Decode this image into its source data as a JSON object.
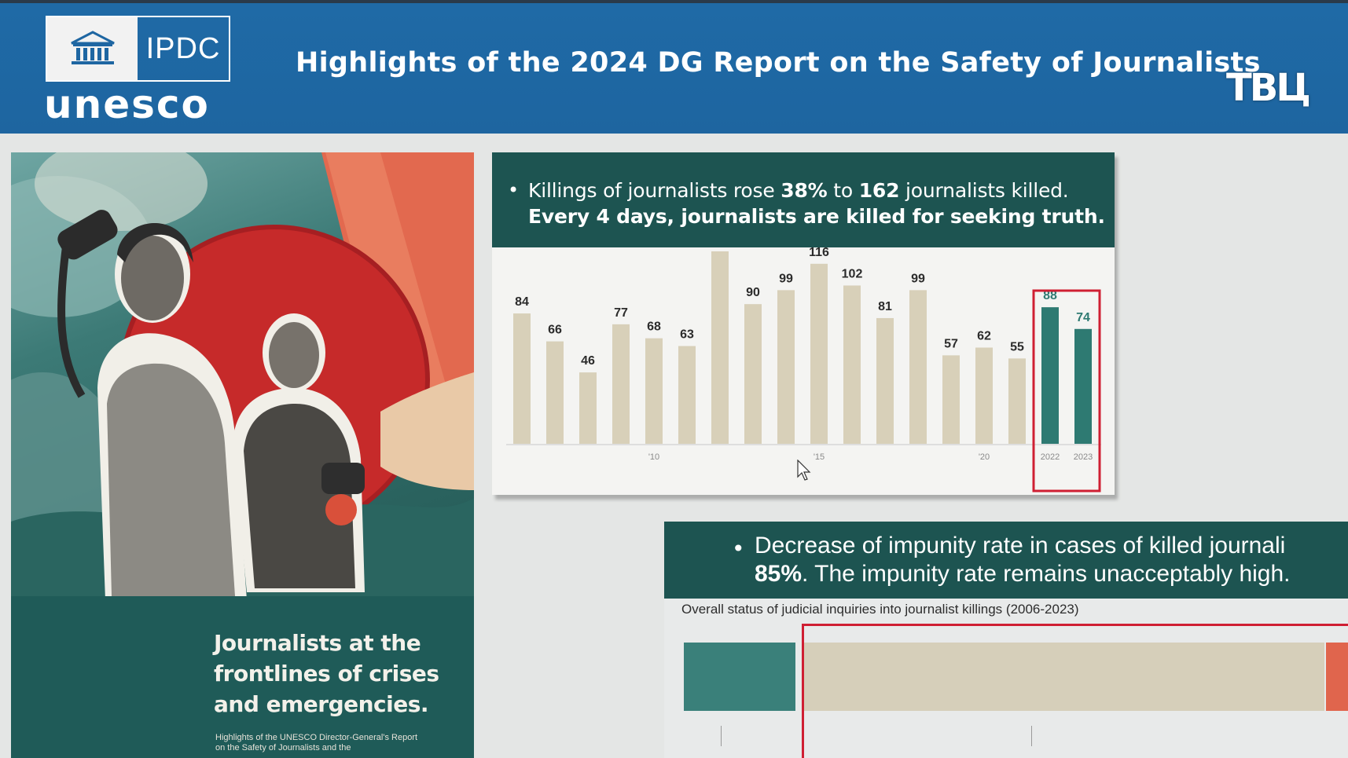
{
  "header": {
    "ipdc_label": "IPDC",
    "unesco_label": "unesco",
    "title": "Highlights of the 2024 DG Report on the Safety of Journalists",
    "channel_logo": "ТВЦ"
  },
  "poster": {
    "headline": "Journalists at the frontlines of crises and emergencies.",
    "subtext": "Highlights of the UNESCO Director-General's Report on the Safety of Journalists and the"
  },
  "killings_panel": {
    "line1_pre": "Killings of journalists rose ",
    "line1_pct": "38%",
    "line1_mid": " to ",
    "line1_num": "162",
    "line1_post": " journalists killed.",
    "line2": "Every 4 days, journalists are killed for seeking truth."
  },
  "chart_data": {
    "type": "bar",
    "title": "",
    "xlabel": "",
    "ylabel": "",
    "categories": [
      "2006",
      "2007",
      "2008",
      "2009",
      "2010",
      "2011",
      "2012",
      "2013",
      "2014",
      "2015",
      "2016",
      "2017",
      "2018",
      "2019",
      "2020",
      "2021",
      "2022",
      "2023"
    ],
    "values": [
      84,
      66,
      46,
      77,
      68,
      63,
      124,
      90,
      99,
      116,
      102,
      81,
      99,
      57,
      62,
      55,
      88,
      74
    ],
    "tick_labels": [
      {
        "category": "2010",
        "label": "'10"
      },
      {
        "category": "2015",
        "label": "'15"
      },
      {
        "category": "2020",
        "label": "'20"
      },
      {
        "category": "2022",
        "label": "2022"
      },
      {
        "category": "2023",
        "label": "2023"
      }
    ],
    "highlighted": [
      "2022",
      "2023"
    ],
    "ylim": [
      0,
      124
    ],
    "grid": false,
    "colors": {
      "normal": "#d8d0b9",
      "highlight": "#2e7a72",
      "box": "#cf1f33"
    }
  },
  "impunity_panel": {
    "line1_text": "Decrease of impunity rate in cases of killed journali",
    "line2_pct": "85%",
    "line2_text": ". The impunity rate remains unacceptably high.",
    "caption": "Overall status of judicial inquiries into journalist killings (2006-2023)"
  },
  "colors": {
    "header_blue": "#1e66a2",
    "panel_teal": "#1d5451",
    "accent_red": "#cf1f33"
  }
}
